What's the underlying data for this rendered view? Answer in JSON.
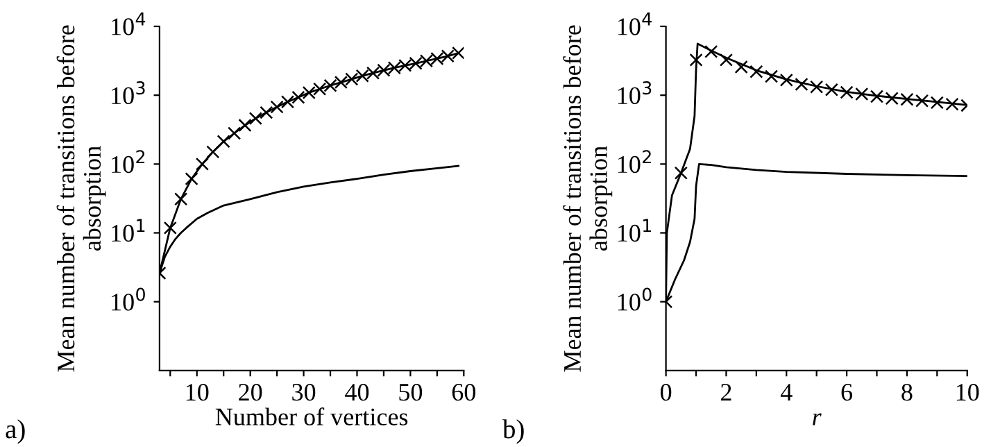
{
  "chart_data": [
    {
      "type": "line",
      "xlabel": "Number of vertices",
      "ylabel": "Mean number of transitions before\nabsorption",
      "annotations": [
        "a)"
      ],
      "log": "y",
      "xlim": [
        3,
        60
      ],
      "ylim": [
        0.1,
        10000
      ],
      "xticks": [
        {
          "value": 5,
          "label": null
        },
        10,
        {
          "value": 15,
          "label": null
        },
        20,
        {
          "value": 25,
          "label": null
        },
        30,
        {
          "value": 35,
          "label": null
        },
        40,
        {
          "value": 45,
          "label": null
        },
        50,
        {
          "value": 55,
          "label": null
        },
        60
      ],
      "yticks": [
        {
          "value": 1,
          "label": "10$^{0}$"
        },
        {
          "value": 10,
          "label": "10$^{1}$"
        },
        {
          "value": 100,
          "label": "10$^{2}$"
        },
        {
          "value": 1000,
          "label": "10$^{3}$"
        },
        {
          "value": 10000,
          "label": "10$^{4}$"
        }
      ],
      "grid": false,
      "legend": false,
      "series": [
        {
          "color": "#000000",
          "x": [
            3,
            5,
            7,
            9,
            11,
            13,
            15,
            17,
            19,
            21,
            23,
            25,
            27,
            29,
            31,
            33,
            35,
            37,
            39,
            41,
            43,
            45,
            47,
            49,
            51,
            53,
            55,
            57,
            59
          ],
          "values": [
            2.6,
            11.8,
            31,
            61,
            100,
            150,
            213,
            280,
            365,
            460,
            560,
            675,
            800,
            930,
            1090,
            1230,
            1380,
            1540,
            1710,
            1910,
            2100,
            2300,
            2500,
            2700,
            2900,
            3150,
            3400,
            3700,
            4100
          ]
        },
        {
          "type": "scatter",
          "color": "#000000",
          "marker": "cross",
          "x": [
            3,
            5,
            7,
            9,
            11,
            13,
            15,
            17,
            19,
            21,
            23,
            25,
            27,
            29,
            31,
            33,
            35,
            37,
            39,
            41,
            43,
            45,
            47,
            49,
            51,
            53,
            55,
            57,
            59
          ],
          "values": [
            2.6,
            11.8,
            31,
            61,
            100,
            150,
            213,
            280,
            365,
            460,
            560,
            675,
            800,
            930,
            1090,
            1230,
            1380,
            1540,
            1710,
            1910,
            2100,
            2300,
            2500,
            2700,
            2900,
            3150,
            3400,
            3700,
            4100
          ]
        },
        {
          "color": "#000000",
          "x": [
            3,
            4,
            5,
            6,
            7,
            8,
            10,
            12,
            15,
            20,
            25,
            30,
            35,
            40,
            45,
            50,
            55,
            59
          ],
          "values": [
            2.6,
            4.5,
            6.3,
            8.2,
            10,
            11.8,
            16,
            19.5,
            25,
            31,
            39,
            47,
            54,
            61,
            70,
            79,
            87,
            94
          ]
        }
      ]
    },
    {
      "type": "line",
      "xlabel": "r",
      "ylabel": "Mean number of transitions before\nabsorption",
      "annotations": [
        "b)"
      ],
      "log": "y",
      "xlim": [
        0,
        10
      ],
      "ylim": [
        0.1,
        10000
      ],
      "xticks": [
        0,
        {
          "value": 1,
          "label": null
        },
        2,
        {
          "value": 3,
          "label": null
        },
        4,
        {
          "value": 5,
          "label": null
        },
        6,
        {
          "value": 7,
          "label": null
        },
        8,
        {
          "value": 9,
          "label": null
        },
        10
      ],
      "yticks": [
        {
          "value": 1,
          "label": "10$^{0}$"
        },
        {
          "value": 10,
          "label": "10$^{1}$"
        },
        {
          "value": 100,
          "label": "10$^{2}$"
        },
        {
          "value": 1000,
          "label": "10$^{3}$"
        },
        {
          "value": 10000,
          "label": "10$^{4}$"
        }
      ],
      "grid": false,
      "legend": false,
      "series": [
        {
          "color": "#000000",
          "x": [
            0,
            0.03,
            0.2,
            0.5,
            0.8,
            0.95,
            1.0,
            1.05,
            1.5,
            2,
            3,
            4,
            5,
            6,
            7,
            8,
            9,
            10
          ],
          "values": [
            1,
            10,
            35,
            74,
            166,
            500,
            2400,
            5600,
            4450,
            3500,
            2300,
            1700,
            1350,
            1120,
            980,
            880,
            800,
            720
          ]
        },
        {
          "type": "scatter",
          "color": "#000000",
          "marker": "cross",
          "x": [
            0,
            0.5,
            1,
            1.5,
            2,
            2.5,
            3,
            3.5,
            4,
            4.5,
            5,
            5.5,
            6,
            6.5,
            7,
            7.5,
            8,
            8.5,
            9,
            9.5,
            10
          ],
          "values": [
            1,
            74,
            3250,
            4300,
            3250,
            2570,
            2200,
            1880,
            1660,
            1440,
            1320,
            1200,
            1100,
            1040,
            960,
            900,
            870,
            830,
            780,
            740,
            710
          ]
        },
        {
          "color": "#000000",
          "x": [
            0,
            0.3,
            0.6,
            0.8,
            0.95,
            1.0,
            1.1,
            1.5,
            2,
            3,
            4,
            6,
            8,
            10
          ],
          "values": [
            1,
            2.1,
            4,
            7.4,
            16,
            48,
            100,
            97,
            90,
            82,
            77,
            72,
            69,
            67
          ]
        }
      ]
    }
  ]
}
